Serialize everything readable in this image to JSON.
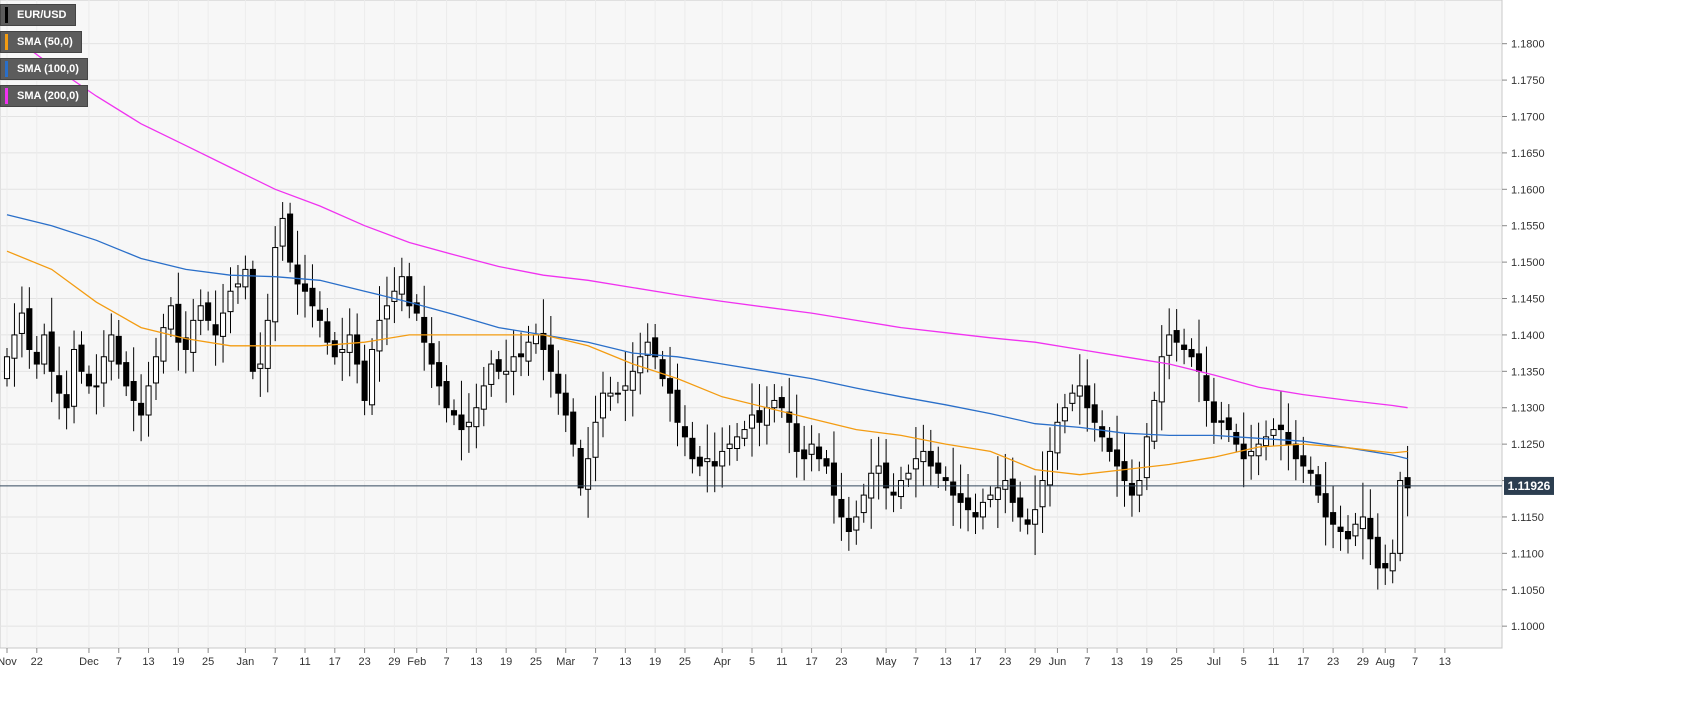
{
  "legend": {
    "instrument": {
      "label": "EUR/USD",
      "color": "#000000"
    },
    "sma50": {
      "label": "SMA (50,0)",
      "color": "#f39c12"
    },
    "sma100": {
      "label": "SMA (100,0)",
      "color": "#2a6fc9"
    },
    "sma200": {
      "label": "SMA (200,0)",
      "color": "#f032f0"
    }
  },
  "last_price": "1.11926",
  "chart_data": {
    "type": "candlestick",
    "ylim": [
      1.097,
      1.186
    ],
    "y_ticks": [
      "1.1000",
      "1.1050",
      "1.1100",
      "1.1150",
      "1.1200",
      "1.1250",
      "1.1300",
      "1.1350",
      "1.1400",
      "1.1450",
      "1.1500",
      "1.1550",
      "1.1600",
      "1.1650",
      "1.1700",
      "1.1750",
      "1.1800"
    ],
    "x_ticks": [
      {
        "label": "Nov",
        "i": 0
      },
      {
        "label": "22",
        "i": 4
      },
      {
        "label": "Dec",
        "i": 11
      },
      {
        "label": "7",
        "i": 15
      },
      {
        "label": "13",
        "i": 19
      },
      {
        "label": "19",
        "i": 23
      },
      {
        "label": "25",
        "i": 27
      },
      {
        "label": "Jan",
        "i": 32
      },
      {
        "label": "7",
        "i": 36
      },
      {
        "label": "11",
        "i": 40
      },
      {
        "label": "17",
        "i": 44
      },
      {
        "label": "23",
        "i": 48
      },
      {
        "label": "29",
        "i": 52
      },
      {
        "label": "Feb",
        "i": 55
      },
      {
        "label": "7",
        "i": 59
      },
      {
        "label": "13",
        "i": 63
      },
      {
        "label": "19",
        "i": 67
      },
      {
        "label": "25",
        "i": 71
      },
      {
        "label": "Mar",
        "i": 75
      },
      {
        "label": "7",
        "i": 79
      },
      {
        "label": "13",
        "i": 83
      },
      {
        "label": "19",
        "i": 87
      },
      {
        "label": "25",
        "i": 91
      },
      {
        "label": "Apr",
        "i": 96
      },
      {
        "label": "5",
        "i": 100
      },
      {
        "label": "11",
        "i": 104
      },
      {
        "label": "17",
        "i": 108
      },
      {
        "label": "23",
        "i": 112
      },
      {
        "label": "May",
        "i": 118
      },
      {
        "label": "7",
        "i": 122
      },
      {
        "label": "13",
        "i": 126
      },
      {
        "label": "17",
        "i": 130
      },
      {
        "label": "23",
        "i": 134
      },
      {
        "label": "29",
        "i": 138
      },
      {
        "label": "Jun",
        "i": 141
      },
      {
        "label": "7",
        "i": 145
      },
      {
        "label": "13",
        "i": 149
      },
      {
        "label": "19",
        "i": 153
      },
      {
        "label": "25",
        "i": 157
      },
      {
        "label": "Jul",
        "i": 162
      },
      {
        "label": "5",
        "i": 166
      },
      {
        "label": "11",
        "i": 170
      },
      {
        "label": "17",
        "i": 174
      },
      {
        "label": "23",
        "i": 178
      },
      {
        "label": "29",
        "i": 182
      },
      {
        "label": "Aug",
        "i": 185
      },
      {
        "label": "7",
        "i": 189
      },
      {
        "label": "13",
        "i": 193
      }
    ],
    "closes": [
      1.137,
      1.14,
      1.143,
      1.138,
      1.136,
      1.14,
      1.135,
      1.132,
      1.13,
      1.138,
      1.135,
      1.133,
      1.133,
      1.137,
      1.14,
      1.136,
      1.133,
      1.131,
      1.129,
      1.133,
      1.137,
      1.141,
      1.144,
      1.139,
      1.138,
      1.142,
      1.144,
      1.142,
      1.14,
      1.143,
      1.146,
      1.147,
      1.149,
      1.135,
      1.136,
      1.142,
      1.152,
      1.156,
      1.15,
      1.147,
      1.146,
      1.144,
      1.142,
      1.139,
      1.137,
      1.138,
      1.14,
      1.136,
      1.131,
      1.138,
      1.142,
      1.144,
      1.146,
      1.148,
      1.144,
      1.143,
      1.139,
      1.136,
      1.133,
      1.13,
      1.129,
      1.127,
      1.128,
      1.13,
      1.133,
      1.136,
      1.135,
      1.135,
      1.137,
      1.137,
      1.139,
      1.14,
      1.138,
      1.135,
      1.132,
      1.129,
      1.125,
      1.119,
      1.123,
      1.128,
      1.132,
      1.132,
      1.132,
      1.133,
      1.135,
      1.137,
      1.139,
      1.137,
      1.134,
      1.132,
      1.128,
      1.126,
      1.123,
      1.122,
      1.123,
      1.122,
      1.124,
      1.125,
      1.126,
      1.127,
      1.129,
      1.128,
      1.13,
      1.131,
      1.13,
      1.128,
      1.124,
      1.123,
      1.125,
      1.123,
      1.122,
      1.118,
      1.115,
      1.113,
      1.115,
      1.118,
      1.121,
      1.122,
      1.119,
      1.118,
      1.12,
      1.121,
      1.123,
      1.124,
      1.122,
      1.121,
      1.12,
      1.118,
      1.117,
      1.116,
      1.115,
      1.117,
      1.118,
      1.119,
      1.12,
      1.117,
      1.115,
      1.114,
      1.116,
      1.12,
      1.124,
      1.128,
      1.13,
      1.132,
      1.133,
      1.13,
      1.128,
      1.126,
      1.124,
      1.122,
      1.12,
      1.118,
      1.12,
      1.126,
      1.131,
      1.137,
      1.14,
      1.139,
      1.138,
      1.137,
      1.135,
      1.131,
      1.128,
      1.128,
      1.127,
      1.125,
      1.123,
      1.124,
      1.125,
      1.126,
      1.127,
      1.127,
      1.125,
      1.123,
      1.122,
      1.121,
      1.118,
      1.115,
      1.114,
      1.113,
      1.112,
      1.114,
      1.115,
      1.112,
      1.108,
      1.108,
      1.11,
      1.12,
      1.119
    ],
    "sma50": [
      [
        0,
        1.1515
      ],
      [
        6,
        1.149
      ],
      [
        12,
        1.1445
      ],
      [
        18,
        1.141
      ],
      [
        24,
        1.1395
      ],
      [
        30,
        1.1385
      ],
      [
        36,
        1.1385
      ],
      [
        42,
        1.1385
      ],
      [
        48,
        1.139
      ],
      [
        54,
        1.14
      ],
      [
        60,
        1.14
      ],
      [
        66,
        1.14
      ],
      [
        72,
        1.14
      ],
      [
        78,
        1.1385
      ],
      [
        84,
        1.136
      ],
      [
        90,
        1.134
      ],
      [
        96,
        1.1315
      ],
      [
        102,
        1.13
      ],
      [
        108,
        1.1285
      ],
      [
        114,
        1.127
      ],
      [
        120,
        1.1262
      ],
      [
        126,
        1.125
      ],
      [
        132,
        1.124
      ],
      [
        138,
        1.1215
      ],
      [
        144,
        1.1208
      ],
      [
        150,
        1.1215
      ],
      [
        156,
        1.1222
      ],
      [
        162,
        1.1232
      ],
      [
        168,
        1.1246
      ],
      [
        174,
        1.125
      ],
      [
        180,
        1.1245
      ],
      [
        186,
        1.1238
      ],
      [
        188,
        1.124
      ]
    ],
    "sma100": [
      [
        0,
        1.1565
      ],
      [
        6,
        1.155
      ],
      [
        12,
        1.153
      ],
      [
        18,
        1.1505
      ],
      [
        24,
        1.149
      ],
      [
        30,
        1.1482
      ],
      [
        36,
        1.148
      ],
      [
        42,
        1.1475
      ],
      [
        48,
        1.146
      ],
      [
        54,
        1.1445
      ],
      [
        60,
        1.1428
      ],
      [
        66,
        1.141
      ],
      [
        72,
        1.14
      ],
      [
        78,
        1.139
      ],
      [
        84,
        1.1375
      ],
      [
        90,
        1.137
      ],
      [
        96,
        1.136
      ],
      [
        102,
        1.135
      ],
      [
        108,
        1.134
      ],
      [
        114,
        1.1327
      ],
      [
        120,
        1.1315
      ],
      [
        126,
        1.1304
      ],
      [
        132,
        1.1292
      ],
      [
        138,
        1.1278
      ],
      [
        144,
        1.1273
      ],
      [
        150,
        1.1265
      ],
      [
        156,
        1.1262
      ],
      [
        162,
        1.1262
      ],
      [
        168,
        1.1258
      ],
      [
        174,
        1.1254
      ],
      [
        180,
        1.1245
      ],
      [
        186,
        1.1235
      ],
      [
        188,
        1.123
      ]
    ],
    "sma200": [
      [
        0,
        1.1815
      ],
      [
        6,
        1.177
      ],
      [
        12,
        1.1728
      ],
      [
        18,
        1.169
      ],
      [
        24,
        1.166
      ],
      [
        30,
        1.163
      ],
      [
        36,
        1.16
      ],
      [
        42,
        1.1577
      ],
      [
        48,
        1.155
      ],
      [
        54,
        1.1527
      ],
      [
        60,
        1.151
      ],
      [
        66,
        1.1494
      ],
      [
        72,
        1.1482
      ],
      [
        78,
        1.1475
      ],
      [
        84,
        1.1465
      ],
      [
        90,
        1.1455
      ],
      [
        96,
        1.1446
      ],
      [
        102,
        1.1438
      ],
      [
        108,
        1.143
      ],
      [
        114,
        1.142
      ],
      [
        120,
        1.141
      ],
      [
        126,
        1.1403
      ],
      [
        132,
        1.1396
      ],
      [
        138,
        1.139
      ],
      [
        144,
        1.138
      ],
      [
        150,
        1.137
      ],
      [
        156,
        1.136
      ],
      [
        162,
        1.1345
      ],
      [
        168,
        1.1328
      ],
      [
        174,
        1.1318
      ],
      [
        180,
        1.131
      ],
      [
        186,
        1.1303
      ],
      [
        188,
        1.13
      ]
    ],
    "grid": true,
    "legend_position": "top-left"
  }
}
